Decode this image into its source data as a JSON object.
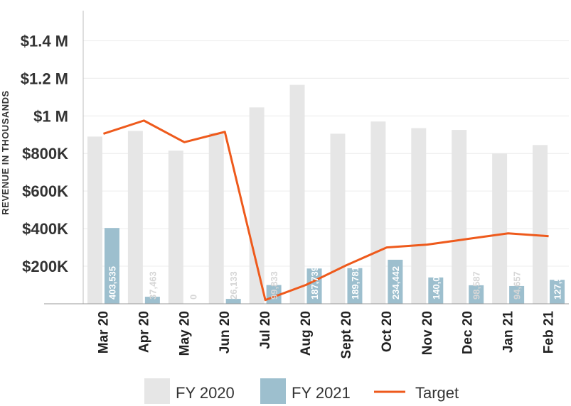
{
  "chart_data": {
    "type": "bar",
    "title": "",
    "xlabel": "",
    "ylabel": "REVENUE IN THOUSANDS",
    "ylim": [
      0,
      1560000
    ],
    "yticks": [
      {
        "value": 200000,
        "label": "$200K"
      },
      {
        "value": 400000,
        "label": "$400K"
      },
      {
        "value": 600000,
        "label": "$600K"
      },
      {
        "value": 800000,
        "label": "$800K"
      },
      {
        "value": 1000000,
        "label": "$1 M"
      },
      {
        "value": 1200000,
        "label": "$1.2 M"
      },
      {
        "value": 1400000,
        "label": "$1.4 M"
      }
    ],
    "grid": true,
    "legend_position": "bottom",
    "categories": [
      "Mar 20",
      "Apr 20",
      "May 20",
      "Jun 20",
      "Jul 20",
      "Aug 20",
      "Sept 20",
      "Oct 20",
      "Nov 20",
      "Dec 20",
      "Jan 21",
      "Feb 21"
    ],
    "series": [
      {
        "name": "FY 2020",
        "kind": "bar",
        "color": "#e6e6e6",
        "values": [
          890000,
          920000,
          815000,
          910000,
          1045000,
          1165000,
          905000,
          970000,
          935000,
          925000,
          800000,
          845000
        ]
      },
      {
        "name": "FY 2021",
        "kind": "bar",
        "color": "#9dbfce",
        "values": [
          403535,
          37463,
          0,
          26133,
          99833,
          187739,
          189781,
          234442,
          140090,
          98587,
          94657,
          127509
        ],
        "labels": [
          "403,535",
          "37,463",
          "0",
          "26,133",
          "99,833",
          "187,739",
          "189,781",
          "234,442",
          "140,090",
          "98,587",
          "94,657",
          "127,509"
        ]
      },
      {
        "name": "Target",
        "kind": "line",
        "color": "#ee5a1c",
        "values": [
          905000,
          975000,
          860000,
          915000,
          20000,
          100000,
          205000,
          300000,
          315000,
          345000,
          375000,
          360000
        ]
      }
    ]
  }
}
